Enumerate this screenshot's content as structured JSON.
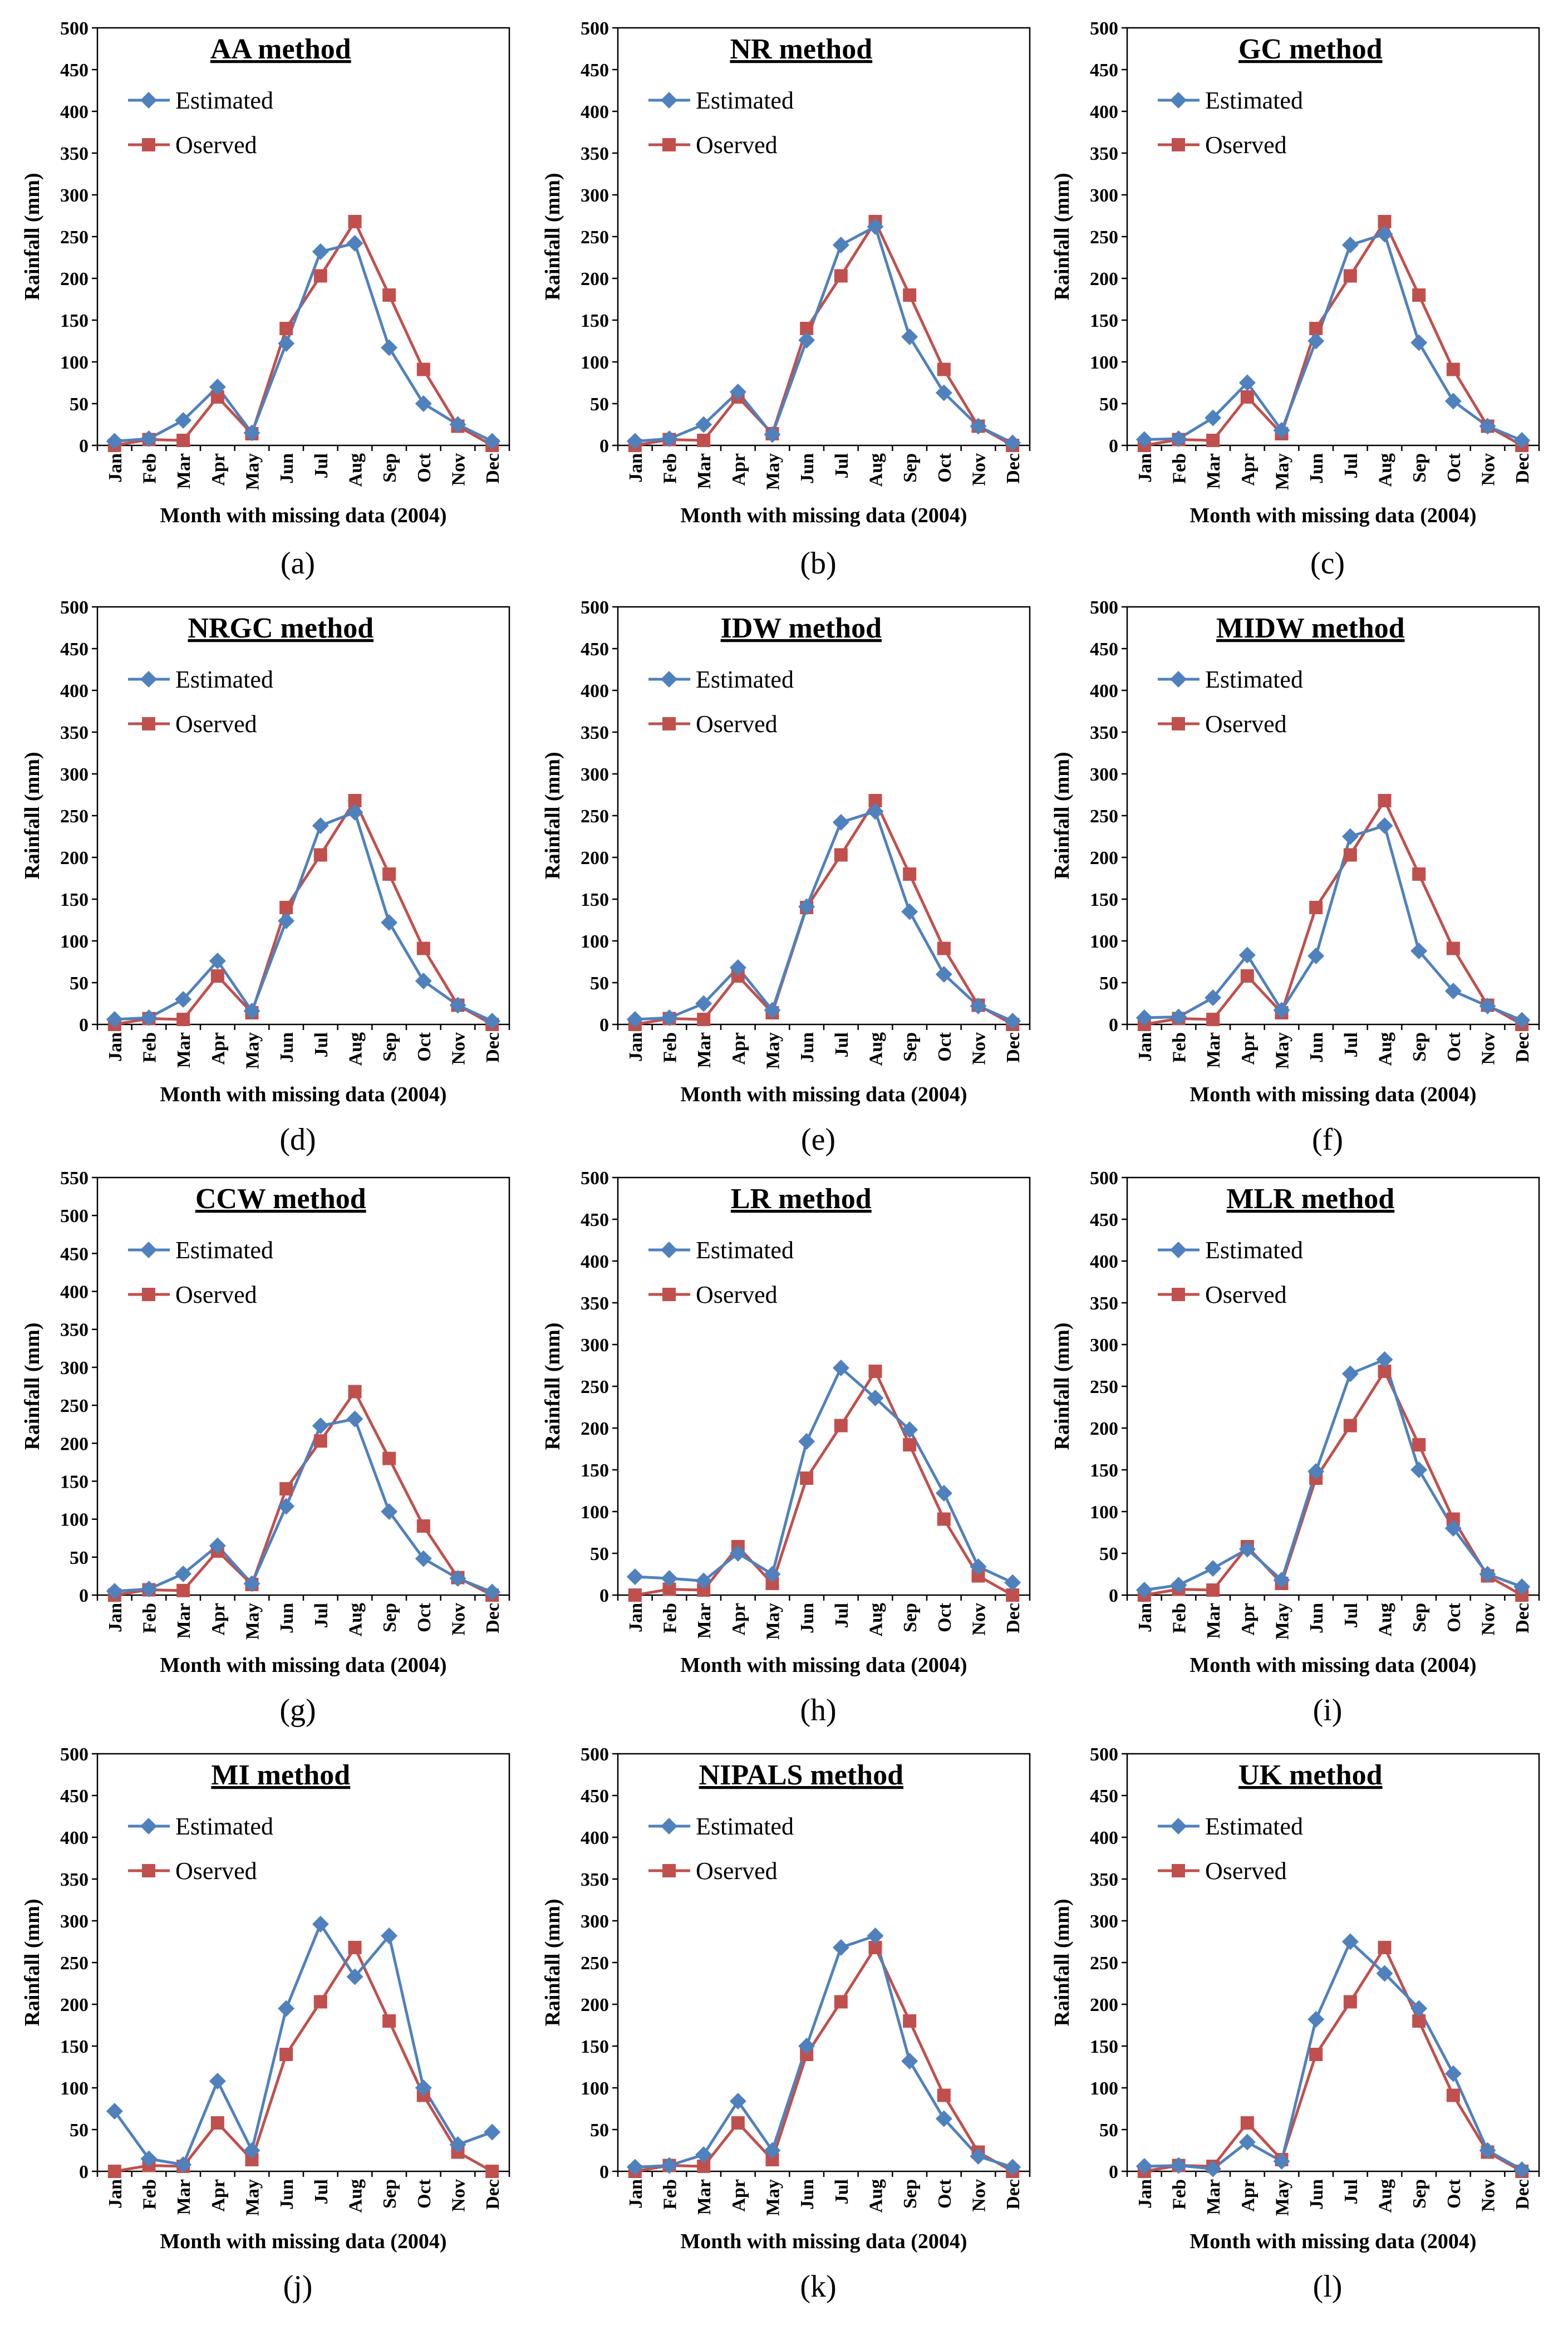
{
  "figure": {
    "xlabel": "Month with missing data (2004)",
    "ylabel": "Rainfall (mm)",
    "legend": {
      "estimated": "Estimated",
      "observed": "Oserved"
    },
    "colors": {
      "estimated": "#4F81BD",
      "observed": "#C0504D"
    }
  },
  "chart_data": [
    {
      "type": "line",
      "caption": "(a)",
      "title": "AA method",
      "categories": [
        "Jan",
        "Feb",
        "Mar",
        "Apr",
        "May",
        "Jun",
        "Jul",
        "Aug",
        "Sep",
        "Oct",
        "Nov",
        "Dec"
      ],
      "ylim": [
        0,
        500
      ],
      "ytick_step": 50,
      "legend_position": "top-left",
      "series": [
        {
          "name": "Estimated",
          "values": [
            5,
            8,
            30,
            70,
            15,
            122,
            232,
            242,
            117,
            50,
            25,
            5
          ]
        },
        {
          "name": "Oserved",
          "values": [
            0,
            7,
            6,
            58,
            14,
            140,
            203,
            268,
            180,
            91,
            23,
            0
          ]
        }
      ]
    },
    {
      "type": "line",
      "caption": "(b)",
      "title": "NR method",
      "categories": [
        "Jan",
        "Feb",
        "Mar",
        "Apr",
        "May",
        "Jun",
        "Jul",
        "Aug",
        "Sep",
        "Oct",
        "Nov",
        "Dec"
      ],
      "ylim": [
        0,
        500
      ],
      "ytick_step": 50,
      "legend_position": "top-left",
      "series": [
        {
          "name": "Estimated",
          "values": [
            5,
            8,
            25,
            64,
            13,
            126,
            240,
            262,
            130,
            63,
            23,
            3
          ]
        },
        {
          "name": "Oserved",
          "values": [
            0,
            7,
            6,
            58,
            14,
            140,
            203,
            268,
            180,
            91,
            23,
            0
          ]
        }
      ]
    },
    {
      "type": "line",
      "caption": "(c)",
      "title": "GC method",
      "categories": [
        "Jan",
        "Feb",
        "Mar",
        "Apr",
        "May",
        "Jun",
        "Jul",
        "Aug",
        "Sep",
        "Oct",
        "Nov",
        "Dec"
      ],
      "ylim": [
        0,
        500
      ],
      "ytick_step": 50,
      "legend_position": "top-left",
      "series": [
        {
          "name": "Estimated",
          "values": [
            7,
            8,
            33,
            75,
            18,
            125,
            240,
            253,
            123,
            53,
            23,
            6
          ]
        },
        {
          "name": "Oserved",
          "values": [
            0,
            7,
            6,
            58,
            14,
            140,
            203,
            268,
            180,
            91,
            23,
            0
          ]
        }
      ]
    },
    {
      "type": "line",
      "caption": "(d)",
      "title": "NRGC method",
      "categories": [
        "Jan",
        "Feb",
        "Mar",
        "Apr",
        "May",
        "Jun",
        "Jul",
        "Aug",
        "Sep",
        "Oct",
        "Nov",
        "Dec"
      ],
      "ylim": [
        0,
        500
      ],
      "ytick_step": 50,
      "legend_position": "top-left",
      "series": [
        {
          "name": "Estimated",
          "values": [
            6,
            8,
            30,
            76,
            16,
            124,
            238,
            254,
            122,
            52,
            23,
            4
          ]
        },
        {
          "name": "Oserved",
          "values": [
            0,
            7,
            6,
            58,
            14,
            140,
            203,
            268,
            180,
            91,
            23,
            0
          ]
        }
      ]
    },
    {
      "type": "line",
      "caption": "(e)",
      "title": "IDW method",
      "categories": [
        "Jan",
        "Feb",
        "Mar",
        "Apr",
        "May",
        "Jun",
        "Jul",
        "Aug",
        "Sep",
        "Oct",
        "Nov",
        "Dec"
      ],
      "ylim": [
        0,
        500
      ],
      "ytick_step": 50,
      "legend_position": "top-left",
      "series": [
        {
          "name": "Estimated",
          "values": [
            6,
            8,
            25,
            68,
            17,
            141,
            242,
            255,
            135,
            60,
            22,
            4
          ]
        },
        {
          "name": "Oserved",
          "values": [
            0,
            7,
            6,
            58,
            14,
            140,
            203,
            268,
            180,
            91,
            23,
            0
          ]
        }
      ]
    },
    {
      "type": "line",
      "caption": "(f)",
      "title": "MIDW method",
      "categories": [
        "Jan",
        "Feb",
        "Mar",
        "Apr",
        "May",
        "Jun",
        "Jul",
        "Aug",
        "Sep",
        "Oct",
        "Nov",
        "Dec"
      ],
      "ylim": [
        0,
        500
      ],
      "ytick_step": 50,
      "legend_position": "top-left",
      "series": [
        {
          "name": "Estimated",
          "values": [
            8,
            9,
            32,
            83,
            17,
            82,
            225,
            238,
            88,
            40,
            22,
            5
          ]
        },
        {
          "name": "Oserved",
          "values": [
            0,
            7,
            6,
            58,
            14,
            140,
            203,
            268,
            180,
            91,
            23,
            0
          ]
        }
      ]
    },
    {
      "type": "line",
      "caption": "(g)",
      "title": "CCW method",
      "categories": [
        "Jan",
        "Feb",
        "Mar",
        "Apr",
        "May",
        "Jun",
        "Jul",
        "Aug",
        "Sep",
        "Oct",
        "Nov",
        "Dec"
      ],
      "ylim": [
        0,
        550
      ],
      "ytick_step": 50,
      "legend_position": "top-left",
      "series": [
        {
          "name": "Estimated",
          "values": [
            5,
            8,
            28,
            65,
            15,
            117,
            223,
            232,
            110,
            48,
            22,
            4
          ]
        },
        {
          "name": "Oserved",
          "values": [
            0,
            7,
            6,
            58,
            14,
            140,
            203,
            268,
            180,
            91,
            23,
            0
          ]
        }
      ]
    },
    {
      "type": "line",
      "caption": "(h)",
      "title": "LR method",
      "categories": [
        "Jan",
        "Feb",
        "Mar",
        "Apr",
        "May",
        "Jun",
        "Jul",
        "Aug",
        "Sep",
        "Oct",
        "Nov",
        "Dec"
      ],
      "ylim": [
        0,
        500
      ],
      "ytick_step": 50,
      "legend_position": "top-left",
      "series": [
        {
          "name": "Estimated",
          "values": [
            22,
            20,
            17,
            50,
            25,
            184,
            272,
            236,
            198,
            122,
            34,
            15
          ]
        },
        {
          "name": "Oserved",
          "values": [
            0,
            7,
            6,
            58,
            14,
            140,
            203,
            268,
            180,
            91,
            23,
            0
          ]
        }
      ]
    },
    {
      "type": "line",
      "caption": "(i)",
      "title": "MLR method",
      "categories": [
        "Jan",
        "Feb",
        "Mar",
        "Apr",
        "May",
        "Jun",
        "Jul",
        "Aug",
        "Sep",
        "Oct",
        "Nov",
        "Dec"
      ],
      "ylim": [
        0,
        500
      ],
      "ytick_step": 50,
      "legend_position": "top-left",
      "series": [
        {
          "name": "Estimated",
          "values": [
            6,
            12,
            32,
            55,
            18,
            148,
            265,
            282,
            150,
            80,
            25,
            10
          ]
        },
        {
          "name": "Oserved",
          "values": [
            0,
            7,
            6,
            58,
            14,
            140,
            203,
            268,
            180,
            91,
            23,
            0
          ]
        }
      ]
    },
    {
      "type": "line",
      "caption": "(j)",
      "title": "MI method",
      "categories": [
        "Jan",
        "Feb",
        "Mar",
        "Apr",
        "May",
        "Jun",
        "Jul",
        "Aug",
        "Sep",
        "Oct",
        "Nov",
        "Dec"
      ],
      "ylim": [
        0,
        500
      ],
      "ytick_step": 50,
      "legend_position": "top-left",
      "series": [
        {
          "name": "Estimated",
          "values": [
            72,
            15,
            8,
            108,
            25,
            195,
            296,
            233,
            282,
            100,
            32,
            47
          ]
        },
        {
          "name": "Oserved",
          "values": [
            0,
            7,
            6,
            58,
            14,
            140,
            203,
            268,
            180,
            91,
            23,
            0
          ]
        }
      ]
    },
    {
      "type": "line",
      "caption": "(k)",
      "title": "NIPALS method",
      "categories": [
        "Jan",
        "Feb",
        "Mar",
        "Apr",
        "May",
        "Jun",
        "Jul",
        "Aug",
        "Sep",
        "Oct",
        "Nov",
        "Dec"
      ],
      "ylim": [
        0,
        500
      ],
      "ytick_step": 50,
      "legend_position": "top-left",
      "series": [
        {
          "name": "Estimated",
          "values": [
            5,
            7,
            20,
            84,
            25,
            150,
            268,
            282,
            132,
            63,
            18,
            5
          ]
        },
        {
          "name": "Oserved",
          "values": [
            0,
            7,
            6,
            58,
            14,
            140,
            203,
            268,
            180,
            91,
            23,
            0
          ]
        }
      ]
    },
    {
      "type": "line",
      "caption": "(l)",
      "title": "UK method",
      "categories": [
        "Jan",
        "Feb",
        "Mar",
        "Apr",
        "May",
        "Jun",
        "Jul",
        "Aug",
        "Sep",
        "Oct",
        "Nov",
        "Dec"
      ],
      "ylim": [
        0,
        500
      ],
      "ytick_step": 50,
      "legend_position": "top-left",
      "series": [
        {
          "name": "Estimated",
          "values": [
            6,
            7,
            3,
            35,
            12,
            182,
            275,
            237,
            195,
            117,
            25,
            2
          ]
        },
        {
          "name": "Oserved",
          "values": [
            0,
            7,
            6,
            58,
            14,
            140,
            203,
            268,
            180,
            91,
            23,
            0
          ]
        }
      ]
    }
  ]
}
